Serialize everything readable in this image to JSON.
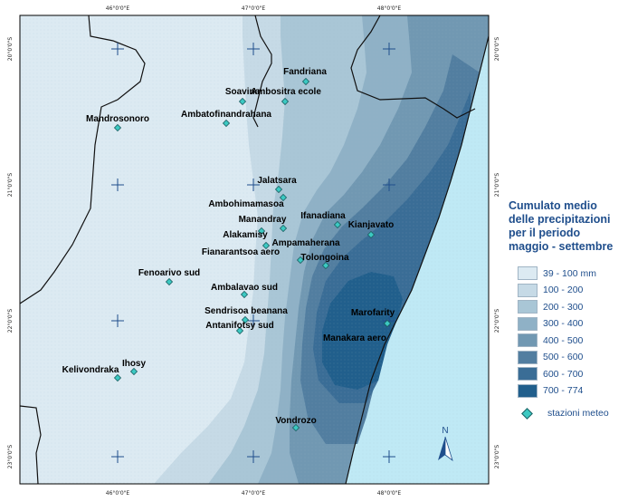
{
  "map": {
    "ticks_top": [
      "46°0'0\"E",
      "47°0'0\"E",
      "48°0'0\"E"
    ],
    "ticks_bottom": [
      "46°0'0\"E",
      "47°0'0\"E",
      "48°0'0\"E"
    ],
    "ticks_left": [
      "20°0'0\"S",
      "21°0'0\"S",
      "22°0'0\"S",
      "23°0'0\"S"
    ],
    "ticks_right": [
      "20°0'0\"S",
      "21°0'0\"S",
      "22°0'0\"S",
      "23°0'0\"S"
    ],
    "north_label": "N",
    "stations": [
      {
        "name": "Fandriana"
      },
      {
        "name": "Soavina"
      },
      {
        "name": "Ambositra ecole"
      },
      {
        "name": "Mandrosonoro"
      },
      {
        "name": "Ambatofinandrahana"
      },
      {
        "name": "Jalatsara"
      },
      {
        "name": "Ambohimamasoa"
      },
      {
        "name": "Ifanadiana"
      },
      {
        "name": "Manandray"
      },
      {
        "name": "Alakamisy"
      },
      {
        "name": "Kianjavato"
      },
      {
        "name": "Ampamaherana"
      },
      {
        "name": "Fianarantsoa aero"
      },
      {
        "name": "Tolongoina"
      },
      {
        "name": "Fenoarivo sud"
      },
      {
        "name": "Ambalavao sud"
      },
      {
        "name": "Sendrisoa beanana"
      },
      {
        "name": "Antanifotsy sud"
      },
      {
        "name": "Marofarity"
      },
      {
        "name": "Manakara aero"
      },
      {
        "name": "Ihosy"
      },
      {
        "name": "Kelivondraka"
      },
      {
        "name": "Vondrozo"
      }
    ]
  },
  "legend": {
    "title_lines": [
      "Cumulato medio",
      "delle  precipitazioni",
      "per il periodo",
      "maggio - settembre"
    ],
    "classes": [
      {
        "label": "39 - 100  mm",
        "color": "#dceaf2"
      },
      {
        "label": "100 - 200",
        "color": "#c6dae6"
      },
      {
        "label": "200 - 300",
        "color": "#a9c6d6"
      },
      {
        "label": "300 - 400",
        "color": "#8fb1c6"
      },
      {
        "label": "400 - 500",
        "color": "#7198b2"
      },
      {
        "label": "500 - 600",
        "color": "#527ea0"
      },
      {
        "label": "600 - 700",
        "color": "#3a6d96"
      },
      {
        "label": "700 - 774",
        "color": "#215f8c"
      }
    ],
    "station_label": "stazioni meteo",
    "station_color": "#3cc9c2",
    "sea_color": "#bfe9f5"
  }
}
